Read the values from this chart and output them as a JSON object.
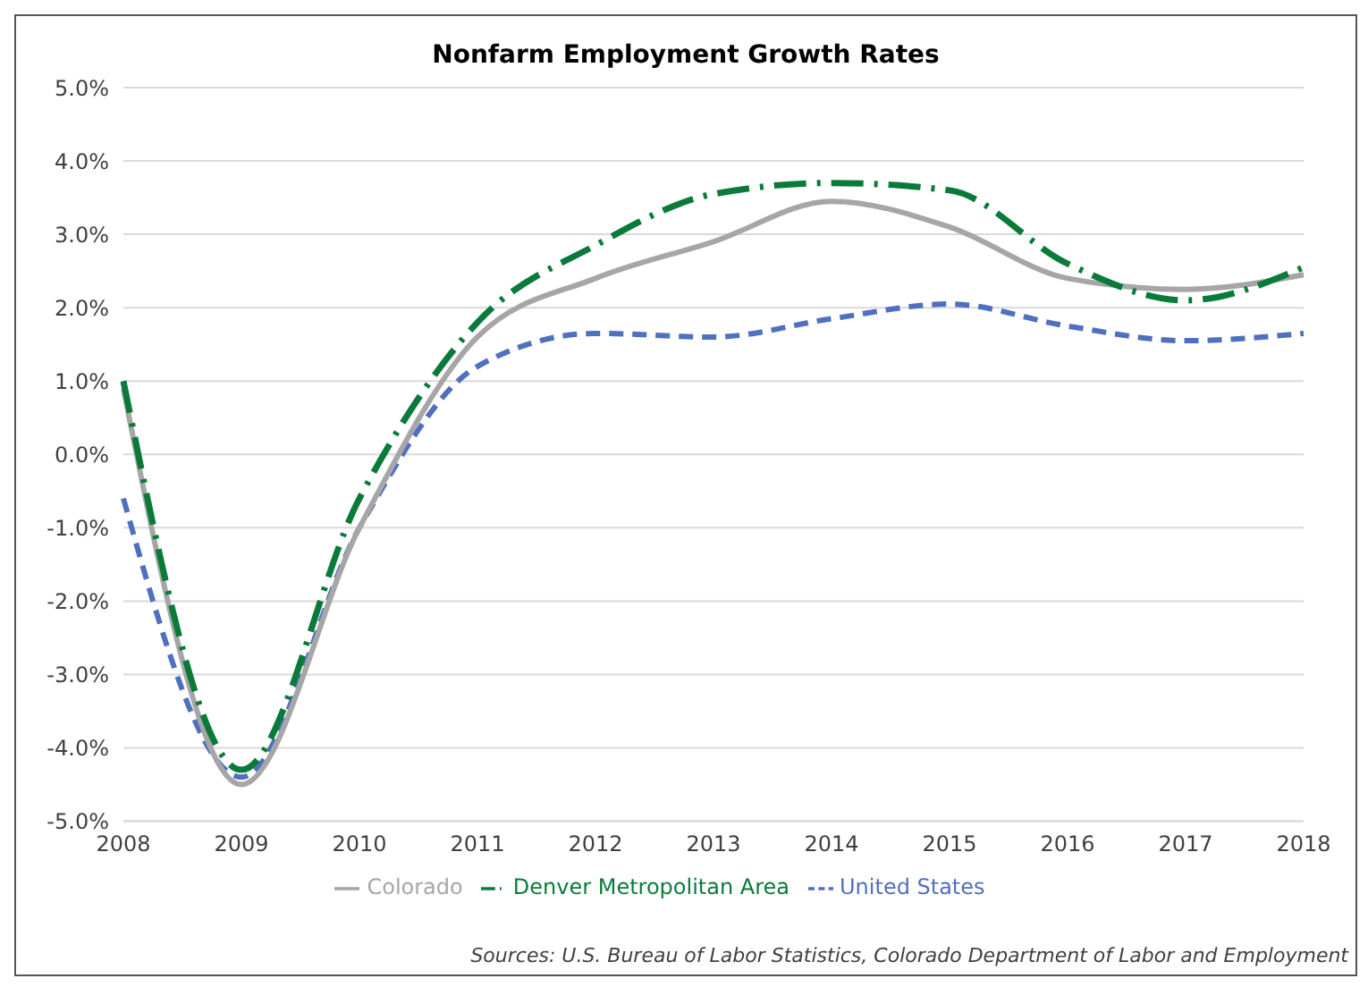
{
  "chart_data": {
    "type": "line",
    "title": "Nonfarm Employment Growth Rates",
    "categories": [
      "2008",
      "2009",
      "2010",
      "2011",
      "2012",
      "2013",
      "2014",
      "2015",
      "2016",
      "2017",
      "2018"
    ],
    "series": [
      {
        "name": "United States",
        "color": "#4f6fbf",
        "line_style": "dashed",
        "values": [
          -0.6,
          -4.4,
          -1.0,
          1.2,
          1.65,
          1.6,
          1.85,
          2.05,
          1.75,
          1.55,
          1.65
        ]
      },
      {
        "name": "Colorado",
        "color": "#a6a6a6",
        "line_style": "solid",
        "values": [
          0.9,
          -4.5,
          -1.0,
          1.6,
          2.4,
          2.9,
          3.45,
          3.1,
          2.4,
          2.25,
          2.45
        ]
      },
      {
        "name": "Denver Metropolitan Area",
        "color": "#0a7a3a",
        "line_style": "dashed",
        "values": [
          1.0,
          -4.3,
          -0.6,
          1.8,
          2.85,
          3.55,
          3.7,
          3.6,
          2.6,
          2.1,
          2.55
        ]
      }
    ],
    "ylim": [
      -5,
      5
    ],
    "yticks": [
      {
        "value": -5,
        "label": "-5.0%"
      },
      {
        "value": -4,
        "label": "-4.0%"
      },
      {
        "value": -3,
        "label": "-3.0%"
      },
      {
        "value": -2,
        "label": "-2.0%"
      },
      {
        "value": -1,
        "label": "-1.0%"
      },
      {
        "value": 0,
        "label": "0.0%"
      },
      {
        "value": 1,
        "label": "1.0%"
      },
      {
        "value": 2,
        "label": "2.0%"
      },
      {
        "value": 3,
        "label": "3.0%"
      },
      {
        "value": 4,
        "label": "4.0%"
      },
      {
        "value": 5,
        "label": "5.0%"
      }
    ],
    "grid": "y",
    "legend": "bottom",
    "marker": "none",
    "annotations": [
      "Sources: U.S. Bureau of Labor Statistics, Colorado Department of Labor and Employment"
    ]
  }
}
